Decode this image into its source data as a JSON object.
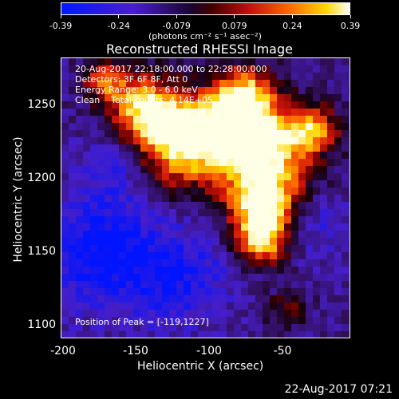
{
  "colorbar": {
    "ticks": [
      "-0.39",
      "-0.24",
      "-0.079",
      "0.079",
      "0.24",
      "0.39"
    ],
    "units": "(photons cm⁻² s⁻¹ asec⁻²)"
  },
  "title": "Reconstructed RHESSI Image",
  "info_lines": [
    "20-Aug-2017 22:18:00.000 to 22:28:00.000",
    "Detectors: 3F 6F 8F, Att 0",
    "Energy Range: 3.0 - 6.0 keV",
    "Clean    Total counts: 4.14E+05"
  ],
  "peak_text": "Position of Peak = [-119,1227]",
  "axes": {
    "xlabel": "Heliocentric X (arcsec)",
    "ylabel": "Heliocentric Y (arcsec)",
    "xticks": [
      "-200",
      "-150",
      "-100",
      "-50"
    ],
    "yticks": [
      "1250",
      "1200",
      "1150",
      "1100"
    ]
  },
  "timestamp": "22-Aug-2017 07:21",
  "colors": {
    "background": "#000000",
    "cmap": [
      "#0000ff",
      "#3a1aa6",
      "#1a0a33",
      "#000000",
      "#7a0000",
      "#d01010",
      "#ff6a00",
      "#ffd000",
      "#ffffff"
    ]
  }
}
